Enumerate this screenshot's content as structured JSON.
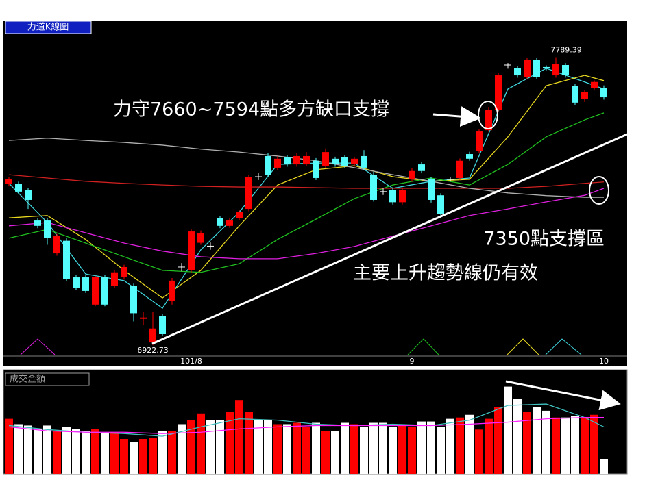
{
  "chart_data": [
    {
      "type": "candlestick",
      "title": "力道K線圖",
      "categories": [
        null,
        null,
        null,
        null,
        null,
        null,
        null,
        null,
        null,
        null,
        null,
        null,
        null,
        null,
        null,
        null,
        null,
        null,
        null,
        "101/8",
        null,
        null,
        null,
        null,
        null,
        null,
        null,
        null,
        null,
        null,
        null,
        null,
        null,
        null,
        null,
        null,
        null,
        null,
        null,
        null,
        null,
        null,
        "9",
        null,
        null,
        null,
        null,
        null,
        null,
        null,
        null,
        null,
        null,
        null,
        null,
        null,
        null,
        null,
        null,
        null,
        null,
        null,
        "10"
      ],
      "open": [
        7409,
        7409,
        7389,
        7298,
        7298,
        7199,
        7237,
        7127,
        7127,
        7045,
        7127,
        7101,
        7127,
        7101,
        7002,
        6931,
        7010,
        7055,
        7158,
        7148,
        7231,
        7221,
        7306,
        7282,
        7306,
        7333,
        7430,
        7492,
        7457,
        7488,
        7467,
        7467,
        7478,
        7463,
        7484,
        7488,
        7467,
        7492,
        7436,
        7385,
        7389,
        7353,
        7422,
        7467,
        7422,
        7374,
        7422,
        7426,
        7498,
        7508,
        7570,
        7632,
        7766,
        7756,
        7731,
        7781,
        7760,
        7735,
        7766,
        7704,
        7663,
        7698,
        7698
      ],
      "high": [
        7430,
        7415,
        7395,
        7305,
        7305,
        7258,
        7245,
        7135,
        7135,
        7132,
        7135,
        7148,
        7165,
        7108,
        7024,
        7024,
        7017,
        7125,
        7170,
        7272,
        7268,
        7232,
        7312,
        7305,
        7330,
        7436,
        7440,
        7500,
        7492,
        7495,
        7500,
        7504,
        7486,
        7515,
        7490,
        7495,
        7490,
        7510,
        7445,
        7395,
        7398,
        7398,
        7455,
        7474,
        7430,
        7380,
        7430,
        7485,
        7505,
        7572,
        7640,
        7742,
        7772,
        7762,
        7787,
        7787,
        7765,
        7789.39,
        7772,
        7710,
        7690,
        7720,
        7705
      ],
      "low": [
        7401,
        7378,
        7333,
        7275,
        7225,
        7192,
        7115,
        7090,
        7080,
        7040,
        7040,
        7096,
        7120,
        6994,
        6983,
        6922.73,
        6950,
        7045,
        7145,
        7140,
        7225,
        7210,
        7275,
        7276,
        7300,
        7326,
        7420,
        7430,
        7450,
        7460,
        7460,
        7462,
        7420,
        7457,
        7460,
        7455,
        7460,
        7450,
        7355,
        7375,
        7346,
        7346,
        7415,
        7440,
        7352,
        7310,
        7415,
        7420,
        7478,
        7500,
        7565,
        7626,
        7755,
        7728,
        7725,
        7725,
        7750,
        7728,
        7728,
        7645,
        7655,
        7692,
        7662
      ],
      "close": [
        7422,
        7385,
        7360,
        7282,
        7245,
        7251,
        7121,
        7096,
        7086,
        7127,
        7045,
        7142,
        7158,
        7019,
        7006,
        6973,
        6956,
        7117,
        7158,
        7265,
        7261,
        7221,
        7282,
        7298,
        7323,
        7430,
        7430,
        7436,
        7484,
        7467,
        7492,
        7492,
        7426,
        7504,
        7467,
        7463,
        7484,
        7457,
        7360,
        7385,
        7353,
        7391,
        7447,
        7447,
        7360,
        7318,
        7422,
        7478,
        7484,
        7566,
        7632,
        7735,
        7766,
        7735,
        7781,
        7731,
        7756,
        7770,
        7735,
        7653,
        7684,
        7715,
        7669
      ],
      "colors": {
        "up": "#ff0000",
        "down": "#54fcfc",
        "flat": "#ffffff"
      },
      "ma_lines": [
        {
          "color": "#40d8e0",
          "x": [
            0,
            4,
            8,
            12,
            16,
            20,
            24,
            28,
            32,
            36,
            40,
            44,
            48,
            52,
            56,
            60,
            62
          ],
          "values": [
            7410,
            7292,
            7137,
            7117,
            7034,
            7210,
            7323,
            7467,
            7471,
            7471,
            7395,
            7416,
            7426,
            7694,
            7756,
            7715,
            7694
          ]
        },
        {
          "color": "#e8d820",
          "x": [
            0,
            4,
            8,
            12,
            16,
            20,
            24,
            28,
            32,
            36,
            40,
            44,
            48,
            52,
            56,
            60,
            62
          ],
          "values": [
            7306,
            7313,
            7241,
            7148,
            7065,
            7148,
            7282,
            7405,
            7451,
            7463,
            7430,
            7416,
            7422,
            7550,
            7704,
            7735,
            7719
          ]
        },
        {
          "color": "#20c020",
          "x": [
            0,
            4,
            8,
            12,
            16,
            20,
            24,
            28,
            32,
            36,
            40,
            44,
            48,
            52,
            56,
            60,
            62
          ],
          "values": [
            7245,
            7271,
            7230,
            7189,
            7148,
            7142,
            7168,
            7241,
            7302,
            7364,
            7405,
            7426,
            7405,
            7467,
            7550,
            7601,
            7622
          ]
        },
        {
          "color": "#e020e0",
          "x": [
            0,
            4,
            8,
            12,
            16,
            20,
            24,
            28,
            32,
            36,
            40,
            44,
            48,
            52,
            56,
            60,
            62
          ],
          "values": [
            7282,
            7292,
            7261,
            7230,
            7206,
            7189,
            7183,
            7183,
            7199,
            7220,
            7251,
            7282,
            7313,
            7333,
            7354,
            7374,
            7395
          ]
        },
        {
          "color": "#d02020",
          "x": [
            0,
            4,
            8,
            12,
            16,
            20,
            24,
            28,
            32,
            36,
            40,
            44,
            48,
            52,
            56,
            60,
            62
          ],
          "values": [
            7436,
            7426,
            7416,
            7410,
            7405,
            7401,
            7399,
            7399,
            7397,
            7395,
            7395,
            7395,
            7395,
            7395,
            7401,
            7410,
            7414
          ]
        },
        {
          "color": "#b0b0b0",
          "x": [
            0,
            4,
            8,
            12,
            16,
            20,
            24,
            28,
            32,
            36,
            40,
            44,
            48,
            52,
            56,
            60,
            62
          ],
          "values": [
            7539,
            7546,
            7539,
            7533,
            7525,
            7513,
            7504,
            7492,
            7478,
            7457,
            7436,
            7416,
            7395,
            7381,
            7373,
            7368,
            7368
          ]
        }
      ],
      "ylim": [
        6890,
        7900
      ],
      "annotations": [
        "力守7660~7594點多方缺口支撐",
        "7350點支撐區",
        "主要上升趨勢線仍有效"
      ]
    },
    {
      "type": "bar",
      "title": "成交金額",
      "values": [
        82,
        74,
        72,
        67,
        72,
        64,
        70,
        67,
        64,
        67,
        62,
        62,
        52,
        47,
        52,
        54,
        64,
        64,
        74,
        80,
        90,
        80,
        80,
        92,
        110,
        92,
        80,
        80,
        74,
        74,
        76,
        70,
        76,
        64,
        64,
        76,
        74,
        70,
        76,
        76,
        70,
        74,
        70,
        78,
        78,
        70,
        82,
        84,
        88,
        66,
        82,
        100,
        130,
        112,
        92,
        100,
        94,
        84,
        84,
        86,
        84,
        88,
        22
      ],
      "colors": {
        "up": "#ff0000",
        "down": "#ffffff"
      },
      "lines": [
        {
          "color": "#40c0c0",
          "x": [
            0,
            4,
            8,
            12,
            16,
            20,
            24,
            28,
            32,
            36,
            40,
            44,
            48,
            52,
            56,
            60,
            62
          ],
          "values": [
            72,
            66,
            62,
            60,
            56,
            70,
            82,
            80,
            74,
            72,
            74,
            72,
            80,
            102,
            104,
            84,
            70
          ]
        },
        {
          "color": "#ff20ff",
          "x": [
            0,
            4,
            8,
            12,
            16,
            20,
            24,
            28,
            32,
            36,
            40,
            44,
            48,
            52,
            56,
            60,
            62
          ],
          "values": [
            70,
            64,
            62,
            62,
            60,
            62,
            67,
            70,
            72,
            72,
            72,
            72,
            74,
            77,
            82,
            84,
            84
          ]
        }
      ],
      "ylim": [
        0,
        150
      ]
    }
  ]
}
